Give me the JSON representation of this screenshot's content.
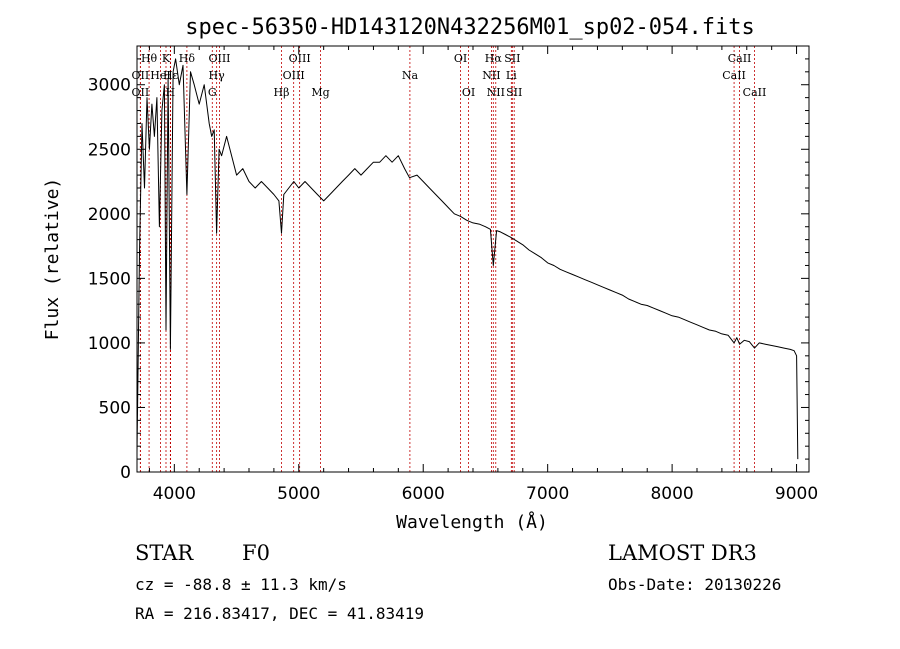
{
  "chart_data": {
    "type": "line",
    "title": "spec-56350-HD143120N432256M01_sp02-054.fits",
    "xlabel": "Wavelength (Å)",
    "ylabel": "Flux (relative)",
    "xlim": [
      3700,
      9100
    ],
    "ylim": [
      0,
      3300
    ],
    "x_ticks": [
      4000,
      5000,
      6000,
      7000,
      8000,
      9000
    ],
    "y_ticks": [
      0,
      500,
      1000,
      1500,
      2000,
      2500,
      3000
    ],
    "x_tick_labels": [
      "4000",
      "5000",
      "6000",
      "7000",
      "8000",
      "9000"
    ],
    "y_tick_labels": [
      "0",
      "500",
      "1000",
      "1500",
      "2000",
      "2500",
      "3000"
    ],
    "series": [
      {
        "name": "spectrum",
        "x": [
          3700,
          3720,
          3740,
          3760,
          3780,
          3800,
          3820,
          3840,
          3860,
          3880,
          3900,
          3920,
          3933,
          3950,
          3968,
          3990,
          4010,
          4040,
          4070,
          4101,
          4130,
          4160,
          4200,
          4240,
          4280,
          4300,
          4320,
          4340,
          4360,
          4380,
          4420,
          4460,
          4500,
          4550,
          4600,
          4650,
          4700,
          4750,
          4800,
          4840,
          4861,
          4880,
          4920,
          4960,
          5000,
          5050,
          5100,
          5150,
          5200,
          5250,
          5300,
          5350,
          5400,
          5450,
          5500,
          5550,
          5600,
          5650,
          5700,
          5750,
          5800,
          5850,
          5890,
          5950,
          6000,
          6050,
          6100,
          6150,
          6200,
          6250,
          6300,
          6350,
          6400,
          6450,
          6500,
          6540,
          6563,
          6590,
          6620,
          6660,
          6700,
          6750,
          6800,
          6850,
          6900,
          6950,
          7000,
          7050,
          7100,
          7150,
          7200,
          7250,
          7300,
          7350,
          7400,
          7450,
          7500,
          7550,
          7600,
          7650,
          7700,
          7750,
          7800,
          7850,
          7900,
          7950,
          8000,
          8050,
          8100,
          8150,
          8200,
          8250,
          8300,
          8350,
          8400,
          8450,
          8498,
          8520,
          8542,
          8580,
          8620,
          8662,
          8700,
          8750,
          8800,
          8850,
          8900,
          8950,
          8980,
          9000,
          9010
        ],
        "values": [
          150,
          1700,
          2700,
          2200,
          2900,
          2500,
          2850,
          2600,
          2900,
          1900,
          2800,
          3000,
          1100,
          3050,
          950,
          3100,
          3200,
          3000,
          3150,
          2150,
          3100,
          3000,
          2850,
          3000,
          2700,
          2600,
          2650,
          1850,
          2500,
          2450,
          2600,
          2450,
          2300,
          2350,
          2250,
          2200,
          2250,
          2200,
          2150,
          2100,
          1850,
          2150,
          2200,
          2250,
          2200,
          2250,
          2200,
          2150,
          2100,
          2150,
          2200,
          2250,
          2300,
          2350,
          2300,
          2350,
          2400,
          2400,
          2450,
          2400,
          2450,
          2350,
          2280,
          2300,
          2250,
          2200,
          2150,
          2100,
          2050,
          2000,
          1980,
          1950,
          1930,
          1920,
          1900,
          1880,
          1600,
          1870,
          1860,
          1840,
          1820,
          1790,
          1760,
          1720,
          1690,
          1660,
          1620,
          1600,
          1570,
          1550,
          1530,
          1510,
          1490,
          1470,
          1450,
          1430,
          1410,
          1390,
          1370,
          1340,
          1320,
          1300,
          1290,
          1270,
          1250,
          1230,
          1210,
          1200,
          1180,
          1160,
          1140,
          1120,
          1100,
          1090,
          1070,
          1060,
          1000,
          1040,
          990,
          1020,
          1010,
          960,
          1000,
          990,
          980,
          970,
          960,
          950,
          940,
          900,
          100
        ]
      }
    ],
    "lines": [
      {
        "name": "OII",
        "x": 3727,
        "row": 3
      },
      {
        "name": "Hθ",
        "x": 3797,
        "row": 1
      },
      {
        "name": "OII",
        "x": 3727,
        "row": 2
      },
      {
        "name": "HeI",
        "x": 3889,
        "row": 2
      },
      {
        "name": "K",
        "x": 3933,
        "row": 1
      },
      {
        "name": "H",
        "x": 3968,
        "row": 3
      },
      {
        "name": "Hε",
        "x": 3970,
        "row": 2
      },
      {
        "name": "Hδ",
        "x": 4101,
        "row": 1
      },
      {
        "name": "G",
        "x": 4305,
        "row": 3
      },
      {
        "name": "Hγ",
        "x": 4340,
        "row": 2
      },
      {
        "name": "OIII",
        "x": 4363,
        "row": 1
      },
      {
        "name": "Hβ",
        "x": 4861,
        "row": 3
      },
      {
        "name": "OIII",
        "x": 4959,
        "row": 2
      },
      {
        "name": "OIII",
        "x": 5007,
        "row": 1
      },
      {
        "name": "Mg",
        "x": 5175,
        "row": 3
      },
      {
        "name": "Na",
        "x": 5893,
        "row": 2
      },
      {
        "name": "OI",
        "x": 6300,
        "row": 1
      },
      {
        "name": "OI",
        "x": 6364,
        "row": 3
      },
      {
        "name": "NII",
        "x": 6548,
        "row": 2
      },
      {
        "name": "Hα",
        "x": 6563,
        "row": 1
      },
      {
        "name": "NII",
        "x": 6583,
        "row": 3
      },
      {
        "name": "Li",
        "x": 6708,
        "row": 2
      },
      {
        "name": "SII",
        "x": 6716,
        "row": 1
      },
      {
        "name": "SII",
        "x": 6731,
        "row": 3
      },
      {
        "name": "CaII",
        "x": 8498,
        "row": 2
      },
      {
        "name": "CaII",
        "x": 8542,
        "row": 1
      },
      {
        "name": "CaII",
        "x": 8662,
        "row": 3
      }
    ]
  },
  "info": {
    "object_class": "STAR",
    "subclass": "F0",
    "survey": "LAMOST DR3",
    "cz": "cz = -88.8 ± 11.3 km/s",
    "obs_date": "Obs-Date: 20130226",
    "coords": "RA = 216.83417, DEC =  41.83419"
  }
}
